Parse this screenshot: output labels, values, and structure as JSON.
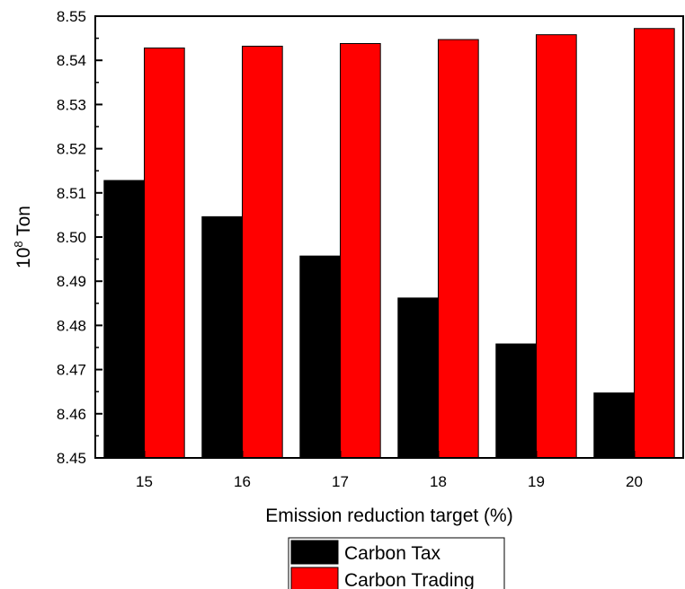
{
  "chart_data": {
    "type": "bar",
    "title": "",
    "xlabel": "Emission reduction target (%)",
    "ylabel_base": "10",
    "ylabel_exp": "8",
    "ylabel_unit": " Ton",
    "categories": [
      "15",
      "16",
      "17",
      "18",
      "19",
      "20"
    ],
    "ylim": [
      8.45,
      8.55
    ],
    "yticks": [
      "8.45",
      "8.46",
      "8.47",
      "8.48",
      "8.49",
      "8.50",
      "8.51",
      "8.52",
      "8.53",
      "8.54",
      "8.55"
    ],
    "series": [
      {
        "name": "Carbon Tax",
        "color": "#000000",
        "values": [
          8.5128,
          8.5046,
          8.4957,
          8.4862,
          8.4758,
          8.4647
        ]
      },
      {
        "name": "Carbon Trading",
        "color": "#ff0000",
        "values": [
          8.5428,
          8.5432,
          8.5438,
          8.5447,
          8.5458,
          8.5472
        ]
      }
    ],
    "legend_position": "bottom",
    "grid": false
  }
}
